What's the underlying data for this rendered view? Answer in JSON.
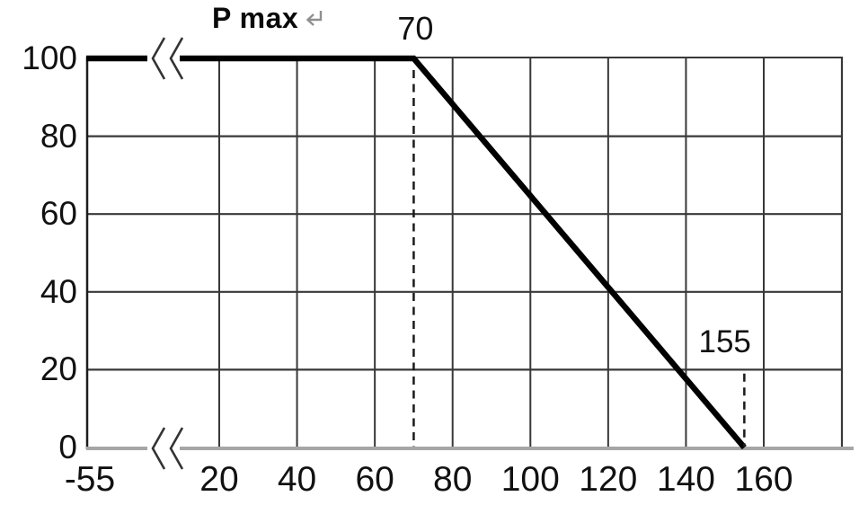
{
  "figure": {
    "curve_label": "P max",
    "return_mark": "return-mark"
  },
  "colors": {
    "background": "#ffffff",
    "curve": "#000000",
    "grid": "#383838",
    "border": "#1c1c1c",
    "axis_bottom": "#a6a6a6",
    "dashed": "#1a1a1a",
    "text": "#111111",
    "break_mark": "#333333",
    "return_mark": "#8f8f8f"
  },
  "chart_data": {
    "type": "line",
    "title": "P max",
    "xlabel": "",
    "ylabel": "",
    "x_ticks": [
      -55,
      20,
      40,
      60,
      80,
      100,
      120,
      140,
      160
    ],
    "y_ticks": [
      0,
      20,
      40,
      60,
      80,
      100
    ],
    "xlim": [
      -55,
      180
    ],
    "ylim": [
      0,
      100
    ],
    "grid": true,
    "legend": "none",
    "x_axis_break": {
      "between": [
        -55,
        20
      ]
    },
    "series": [
      {
        "name": "P max",
        "points": [
          [
            -55,
            100
          ],
          [
            70,
            100
          ],
          [
            155,
            0
          ]
        ]
      }
    ],
    "droplines": [
      {
        "x": 70,
        "y_top": 97,
        "y_bottom": 0
      },
      {
        "x": 155,
        "y_top": 19,
        "y_bottom": 0
      }
    ],
    "annotations": [
      {
        "text": "70",
        "x": 70,
        "placement": "above-top"
      },
      {
        "text": "155",
        "x": 150,
        "y": 27,
        "placement": "point"
      }
    ]
  }
}
